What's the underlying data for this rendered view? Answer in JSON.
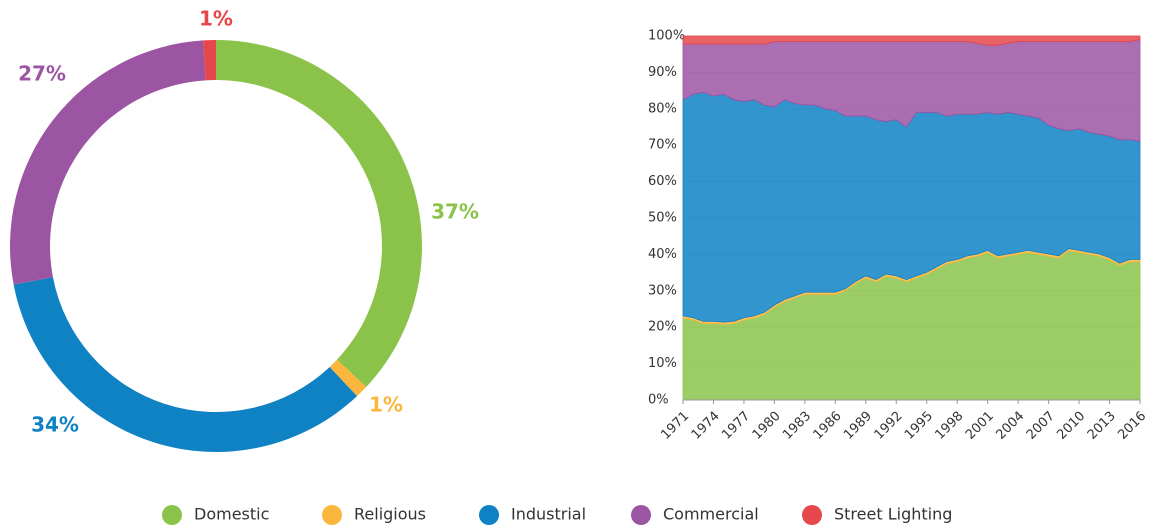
{
  "chart_data": [
    {
      "type": "pie",
      "values": [
        37,
        1,
        34,
        27,
        1
      ],
      "value_labels": [
        "37%",
        "1%",
        "34%",
        "27%",
        "1%"
      ],
      "colors": [
        "#8bc34a",
        "#fbb73d",
        "#0f82c4",
        "#9c55a2",
        "#e5474a"
      ]
    },
    {
      "type": "stacked_area",
      "x": [
        1971,
        1972,
        1973,
        1974,
        1975,
        1976,
        1977,
        1978,
        1979,
        1980,
        1981,
        1982,
        1983,
        1984,
        1985,
        1986,
        1987,
        1988,
        1989,
        1990,
        1991,
        1992,
        1993,
        1994,
        1995,
        1996,
        1997,
        1998,
        1999,
        2000,
        2001,
        2002,
        2003,
        2004,
        2005,
        2006,
        2007,
        2008,
        2009,
        2010,
        2011,
        2012,
        2013,
        2014,
        2015,
        2016
      ],
      "xlim": [
        1971,
        2016
      ],
      "xticks": [
        1971,
        1974,
        1977,
        1980,
        1983,
        1986,
        1989,
        1992,
        1995,
        1998,
        2001,
        2004,
        2007,
        2010,
        2013,
        2016
      ],
      "ylim": [
        0,
        100
      ],
      "yticks": [
        {
          "value": 0,
          "label": "0%"
        },
        {
          "value": 10,
          "label": "10%"
        },
        {
          "value": 20,
          "label": "20%"
        },
        {
          "value": 30,
          "label": "30%"
        },
        {
          "value": 40,
          "label": "40%"
        },
        {
          "value": 50,
          "label": "50%"
        },
        {
          "value": 60,
          "label": "60%"
        },
        {
          "value": 70,
          "label": "70%"
        },
        {
          "value": 80,
          "label": "80%"
        },
        {
          "value": 90,
          "label": "90%"
        },
        {
          "value": 100,
          "label": "100%"
        }
      ],
      "grid": true,
      "series": [
        {
          "name": "Domestic",
          "color": "#8bc34a",
          "values": [
            22.5,
            22,
            21,
            21,
            20.8,
            21,
            22,
            22.5,
            23.5,
            25.5,
            27,
            28,
            29,
            29,
            29,
            29,
            30,
            32,
            33.5,
            32.5,
            34,
            33.5,
            32.5,
            33.5,
            34.5,
            36,
            37.5,
            38,
            39,
            39.5,
            40.5,
            39,
            39.5,
            40,
            40.5,
            40,
            39.5,
            39,
            41,
            40.5,
            40,
            39.5,
            38.5,
            37,
            38,
            38
          ]
        },
        {
          "name": "Religious",
          "color": "#fbb73d",
          "values": [
            0.6,
            0.6,
            0.6,
            0.6,
            0.6,
            0.6,
            0.6,
            0.6,
            0.6,
            0.6,
            0.6,
            0.6,
            0.6,
            0.6,
            0.6,
            0.6,
            0.6,
            0.6,
            0.6,
            0.6,
            0.6,
            0.6,
            0.6,
            0.6,
            0.6,
            0.6,
            0.6,
            0.6,
            0.6,
            0.6,
            0.6,
            0.6,
            0.6,
            0.6,
            0.6,
            0.6,
            0.6,
            0.6,
            0.6,
            0.6,
            0.6,
            0.6,
            0.6,
            0.6,
            0.6,
            0.6
          ]
        },
        {
          "name": "Industrial",
          "color": "#0f82c4",
          "values": [
            59.4,
            61.4,
            62.9,
            61.9,
            62.6,
            60.9,
            59.4,
            59.4,
            56.9,
            54.4,
            54.9,
            52.9,
            51.4,
            51.4,
            50.4,
            49.9,
            47.4,
            45.4,
            43.9,
            43.9,
            41.9,
            42.9,
            41.9,
            44.9,
            43.9,
            42.4,
            39.9,
            39.9,
            38.9,
            38.4,
            37.9,
            38.9,
            38.9,
            37.9,
            36.9,
            36.9,
            35.4,
            34.9,
            32.4,
            33.4,
            32.9,
            32.9,
            33.4,
            33.9,
            32.9,
            32.4
          ]
        },
        {
          "name": "Commercial",
          "color": "#9c55a2",
          "values": [
            15.3,
            13.8,
            13.3,
            14.3,
            13.8,
            15.3,
            15.8,
            15.3,
            16.8,
            18,
            16,
            17,
            17.5,
            17.5,
            18.5,
            19,
            20.5,
            20.5,
            20.5,
            21.5,
            22,
            21.5,
            23.5,
            19.5,
            19.5,
            19.5,
            20.5,
            20,
            20,
            19.5,
            18.5,
            19,
            19,
            20,
            20.5,
            21,
            23,
            24,
            24.5,
            24,
            25,
            25.5,
            26,
            27,
            27,
            28
          ]
        },
        {
          "name": "Street Lighting",
          "color": "#e5474a",
          "values": [
            2.2,
            2.2,
            2.2,
            2.2,
            2.2,
            2.2,
            2.2,
            2.2,
            2.2,
            1.5,
            1.5,
            1.5,
            1.5,
            1.5,
            1.5,
            1.5,
            1.5,
            1.5,
            1.5,
            1.5,
            1.5,
            1.5,
            1.5,
            1.5,
            1.5,
            1.5,
            1.5,
            1.5,
            1.5,
            2,
            2.5,
            2.5,
            2,
            1.5,
            1.5,
            1.5,
            1.5,
            1.5,
            1.5,
            1.5,
            1.5,
            1.5,
            1.5,
            1.5,
            1.5,
            1
          ]
        }
      ]
    }
  ]
}
